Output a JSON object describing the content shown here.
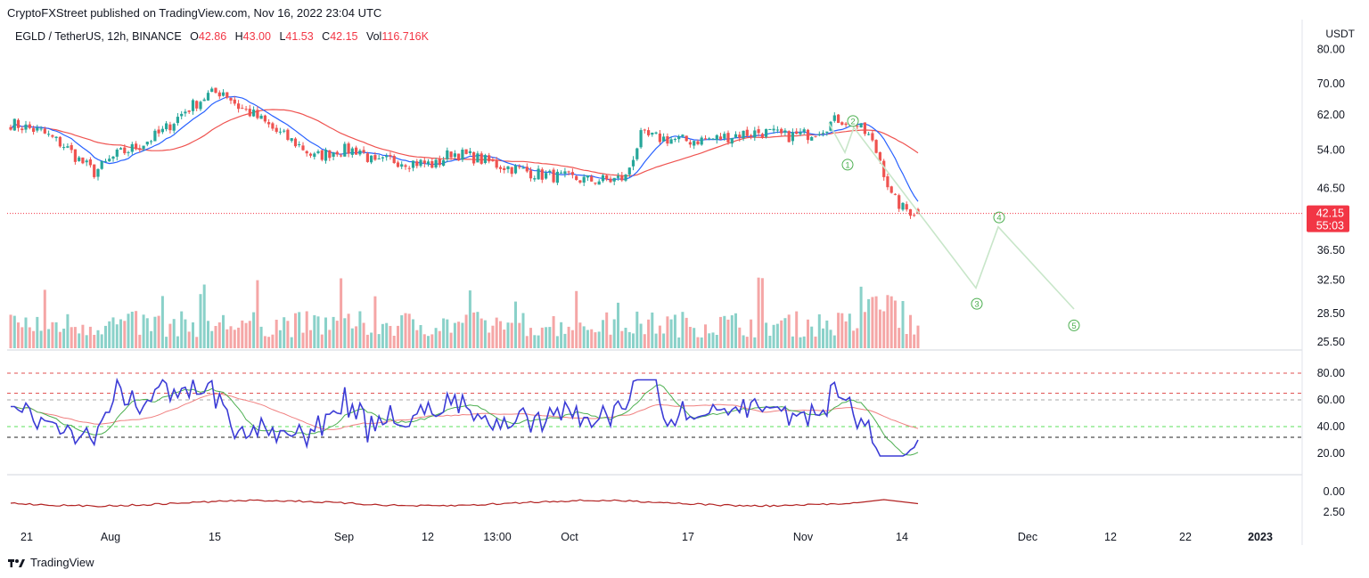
{
  "header": {
    "published_line": "CryptoFXStreet published on TradingView.com, Nov 16, 2022 23:04 UTC"
  },
  "legend": {
    "symbol": "EGLD / TetherUS, 12h, BINANCE",
    "open_label": "O",
    "open": "42.86",
    "high_label": "H",
    "high": "43.00",
    "low_label": "L",
    "low": "41.53",
    "close_label": "C",
    "close": "42.15",
    "vol_label": "Vol",
    "vol": "116.716K"
  },
  "price_axis": {
    "unit": "USDT",
    "ticks": [
      "80.00",
      "70.00",
      "62.00",
      "54.00",
      "46.50",
      "36.50",
      "32.50",
      "28.50",
      "25.50"
    ],
    "last_price": "42.15",
    "countdown": "55:03"
  },
  "rsi_axis": {
    "ticks": [
      "80.00",
      "60.00",
      "40.00",
      "20.00"
    ]
  },
  "bottom_axis": {
    "ticks": [
      "0.00",
      "2.50"
    ]
  },
  "time_axis": {
    "ticks": [
      "21",
      "Aug",
      "15",
      "Sep",
      "12",
      "13:00",
      "Oct",
      "17",
      "Nov",
      "14",
      "Dec",
      "12",
      "22",
      "2023"
    ]
  },
  "wave_labels": [
    "1",
    "2",
    "3",
    "4",
    "5"
  ],
  "brand": {
    "name": "TradingView"
  },
  "colors": {
    "up": "#26a69a",
    "down": "#ef5350",
    "fast_ma": "#2962ff",
    "slow_ma": "#ef5350",
    "rsi": "#3c3cd6",
    "rsi_signal": "#4caf50",
    "wave": "#4caf50",
    "last_price_bg": "#f23645"
  },
  "chart_data": {
    "type": "candlestick",
    "pair": "EGLD / TetherUS",
    "interval": "12h",
    "exchange": "BINANCE",
    "scale": "log",
    "price_ticks": [
      80.0,
      70.0,
      62.0,
      54.0,
      46.5,
      36.5,
      32.5,
      28.5,
      25.5
    ],
    "last_ohlc": {
      "open": 42.86,
      "high": 43.0,
      "low": 41.53,
      "close": 42.15,
      "volume": "116.716K"
    },
    "elliott_projection": [
      {
        "wave": "1",
        "price": 53.5
      },
      {
        "wave": "2",
        "price": 59.0
      },
      {
        "wave": "3",
        "price": 31.5
      },
      {
        "wave": "4",
        "price": 40.0
      },
      {
        "wave": "5",
        "price": 29.0
      }
    ],
    "rsi_levels": [
      80,
      65,
      60,
      40,
      32
    ],
    "rsi_last": 30
  }
}
